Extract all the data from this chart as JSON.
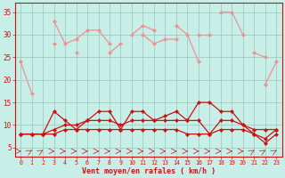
{
  "xlabel": "Vent moyen/en rafales ( km/h )",
  "background_color": "#c8eee8",
  "grid_color": "#a0ccc4",
  "x": [
    0,
    1,
    2,
    3,
    4,
    5,
    6,
    7,
    8,
    9,
    10,
    11,
    12,
    13,
    14,
    15,
    16,
    17,
    18,
    19,
    20,
    21,
    22,
    23
  ],
  "line_pink1": [
    24,
    17,
    null,
    33,
    28,
    29,
    31,
    31,
    28,
    null,
    30,
    32,
    31,
    null,
    32,
    30,
    24,
    null,
    35,
    35,
    30,
    null,
    19,
    24
  ],
  "line_pink2": [
    null,
    null,
    null,
    28,
    null,
    26,
    null,
    null,
    26,
    28,
    null,
    30,
    28,
    29,
    29,
    null,
    30,
    30,
    null,
    null,
    null,
    26,
    25,
    null
  ],
  "line_red1": [
    8,
    8,
    8,
    13,
    11,
    9,
    11,
    13,
    13,
    9,
    13,
    13,
    11,
    12,
    13,
    11,
    15,
    15,
    13,
    13,
    10,
    9,
    9,
    9
  ],
  "line_red2": [
    8,
    8,
    8,
    9,
    10,
    10,
    11,
    11,
    11,
    10,
    11,
    11,
    11,
    11,
    11,
    11,
    11,
    8,
    11,
    11,
    10,
    8,
    7,
    9
  ],
  "line_red3": [
    8,
    8,
    8,
    8,
    9,
    9,
    9,
    9,
    9,
    9,
    9,
    9,
    9,
    9,
    9,
    8,
    8,
    8,
    9,
    9,
    9,
    8,
    6,
    8
  ],
  "ylim": [
    3,
    37
  ],
  "yticks": [
    5,
    10,
    15,
    20,
    25,
    30,
    35
  ],
  "xlim": [
    -0.5,
    23.5
  ],
  "light_pink": "#f09090",
  "dark_red": "#cc1111",
  "arrow_color": "#cc1111",
  "spine_color": "#cc1111",
  "tick_color": "#cc1111",
  "label_color": "#cc1111",
  "arrows_horizontal": [
    0,
    1,
    2,
    3,
    4,
    5,
    6,
    7,
    8,
    9,
    10,
    11,
    12,
    13,
    14,
    15,
    16,
    17,
    18,
    19,
    20,
    21,
    22,
    23
  ],
  "arrows_diagonal": [
    1,
    2,
    21,
    22,
    23
  ]
}
